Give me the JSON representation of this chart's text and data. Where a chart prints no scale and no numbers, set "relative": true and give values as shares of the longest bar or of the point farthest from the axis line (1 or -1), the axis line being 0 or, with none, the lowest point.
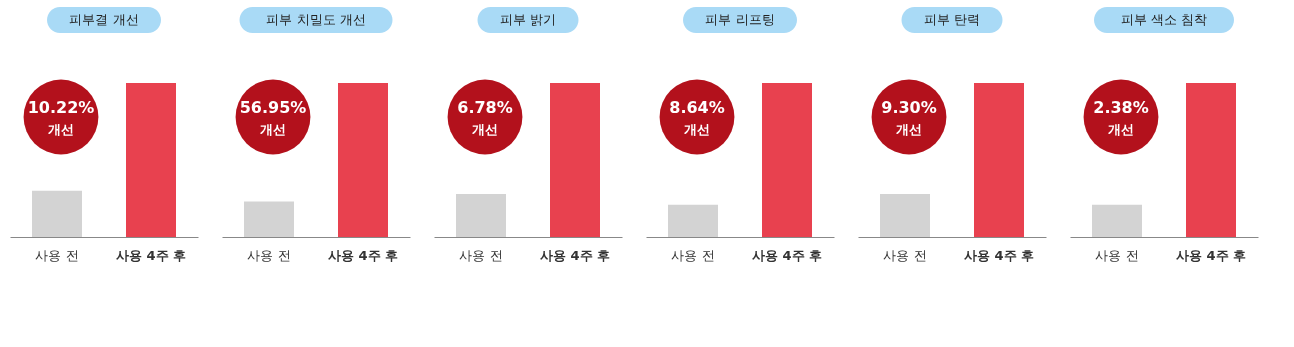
{
  "chart_data": [
    {
      "type": "bar",
      "title": "피부결 개선",
      "categories": [
        "사용 전",
        "사용 4주 후"
      ],
      "relative": true,
      "colors": [
        "#d3d3d3",
        "#e8414f"
      ],
      "values": [
        0.3,
        1
      ],
      "annotations": [
        "10.22%",
        "개선"
      ]
    },
    {
      "type": "bar",
      "title": "피부 치밀도 개선",
      "categories": [
        "사용 전",
        "사용 4주 후"
      ],
      "relative": true,
      "colors": [
        "#d3d3d3",
        "#e8414f"
      ],
      "values": [
        0.23,
        1
      ],
      "annotations": [
        "56.95%",
        "개선"
      ]
    },
    {
      "type": "bar",
      "title": "피부 밝기",
      "categories": [
        "사용 전",
        "사용 4주 후"
      ],
      "relative": true,
      "colors": [
        "#d3d3d3",
        "#e8414f"
      ],
      "values": [
        0.28,
        1
      ],
      "annotations": [
        "6.78%",
        "개선"
      ]
    },
    {
      "type": "bar",
      "title": "피부 리프팅",
      "categories": [
        "사용 전",
        "사용 4주 후"
      ],
      "relative": true,
      "colors": [
        "#d3d3d3",
        "#e8414f"
      ],
      "values": [
        0.21,
        1
      ],
      "annotations": [
        "8.64%",
        "개선"
      ]
    },
    {
      "type": "bar",
      "title": "피부 탄력",
      "categories": [
        "사용 전",
        "사용 4주 후"
      ],
      "relative": true,
      "colors": [
        "#d3d3d3",
        "#e8414f"
      ],
      "values": [
        0.28,
        1
      ],
      "annotations": [
        "9.30%",
        "개선"
      ]
    },
    {
      "type": "bar",
      "title": "피부 색소 침착",
      "categories": [
        "사용 전",
        "사용 4주 후"
      ],
      "relative": true,
      "colors": [
        "#d3d3d3",
        "#e8414f"
      ],
      "values": [
        0.21,
        1
      ],
      "annotations": [
        "2.38%",
        "개선"
      ]
    }
  ]
}
